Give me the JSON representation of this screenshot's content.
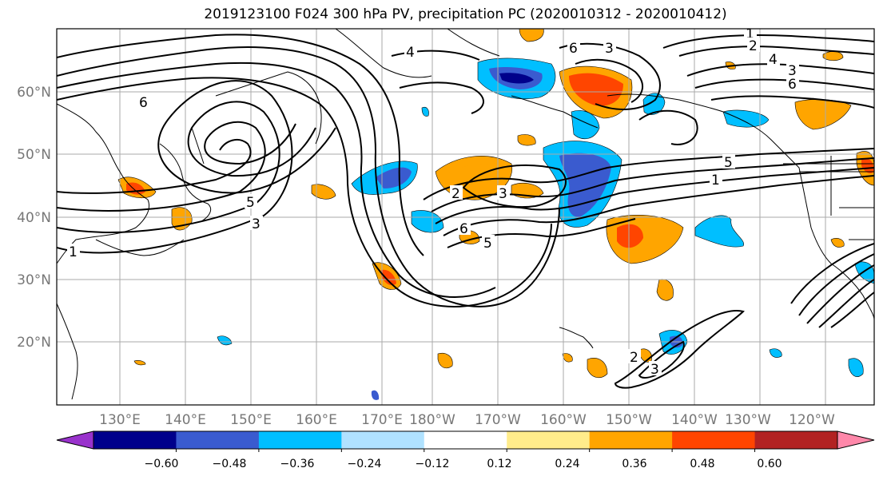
{
  "title": "2019123100 F024 300 hPa PV, precipitation PC (2020010312 - 2020010412)",
  "lat_labels": [
    "60°N",
    "50°N",
    "40°N",
    "30°N",
    "20°N"
  ],
  "lon_labels": [
    "130°E",
    "140°E",
    "150°E",
    "160°E",
    "170°E",
    "180°W",
    "170°W",
    "160°W",
    "150°W",
    "140°W",
    "130°W",
    "120°W"
  ],
  "contour_labels": [
    "1",
    "2",
    "3",
    "4",
    "5",
    "6",
    "1",
    "2",
    "3",
    "4",
    "5",
    "6",
    "3",
    "5",
    "6",
    "5",
    "3",
    "1",
    "2",
    "3",
    "6"
  ],
  "colorbar": {
    "colors": [
      "#9932CC",
      "#00008B",
      "#3A5BCF",
      "#00BFFF",
      "#B0E2FF",
      "#FFFFFF",
      "#FFEC8B",
      "#FFA500",
      "#FF4500",
      "#B22222",
      "#FF88AA"
    ],
    "tick_labels": [
      "−0.60",
      "−0.48",
      "−0.36",
      "−0.24",
      "−0.12",
      "0.12",
      "0.24",
      "0.36",
      "0.48",
      "0.60"
    ]
  }
}
